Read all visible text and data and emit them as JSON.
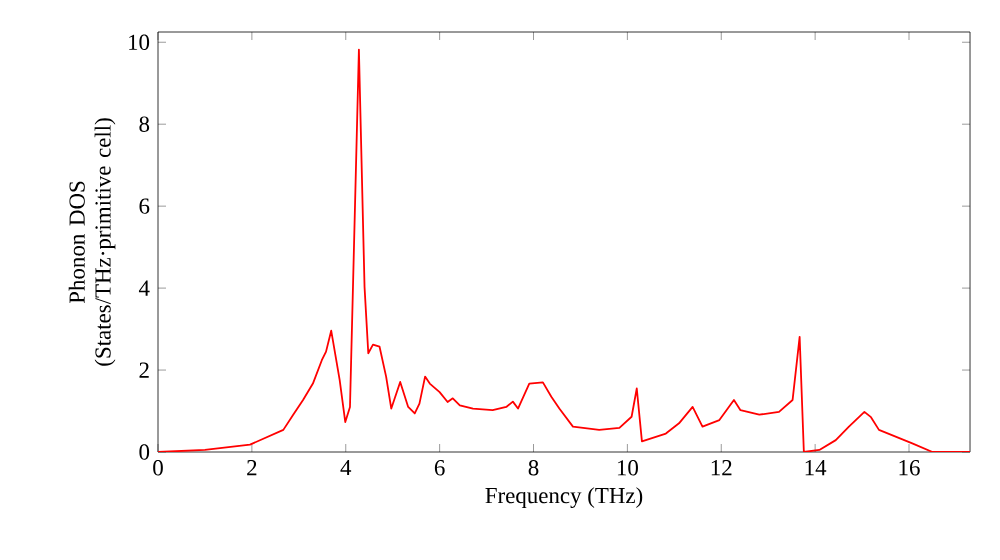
{
  "chart_data": {
    "type": "line",
    "xlabel": "Frequency (THz)",
    "ylabel": "Phonon DOS (States/THz·primitive cell)",
    "xlim": [
      0,
      17.3
    ],
    "ylim": [
      0,
      10.25
    ],
    "xticks": [
      0,
      2,
      4,
      6,
      8,
      10,
      12,
      14,
      16
    ],
    "yticks": [
      0,
      2,
      4,
      6,
      8,
      10
    ],
    "grid": false,
    "marker": "none",
    "line_style": "solid",
    "series": [
      {
        "color": "#ff0000",
        "x": [
          0,
          1.0,
          1.96,
          2.67,
          2.88,
          3.09,
          3.3,
          3.49,
          3.58,
          3.69,
          3.87,
          3.99,
          4.09,
          4.28,
          4.4,
          4.48,
          4.58,
          4.72,
          4.86,
          4.97,
          5.16,
          5.33,
          5.47,
          5.57,
          5.69,
          5.79,
          6.0,
          6.17,
          6.28,
          6.43,
          6.71,
          7.13,
          7.42,
          7.56,
          7.67,
          7.91,
          8.2,
          8.38,
          8.55,
          8.84,
          9.4,
          9.83,
          10.09,
          10.2,
          10.31,
          10.82,
          11.1,
          11.39,
          11.6,
          11.96,
          12.27,
          12.41,
          12.81,
          13.23,
          13.52,
          13.67,
          13.76,
          14.09,
          14.44,
          14.72,
          15.05,
          15.19,
          15.36,
          16.07,
          16.5,
          17.3
        ],
        "values": [
          0,
          0.05,
          0.18,
          0.54,
          0.91,
          1.27,
          1.67,
          2.24,
          2.45,
          2.96,
          1.76,
          0.73,
          1.1,
          9.82,
          4.03,
          2.41,
          2.62,
          2.57,
          1.84,
          1.06,
          1.71,
          1.1,
          0.94,
          1.18,
          1.84,
          1.67,
          1.46,
          1.22,
          1.31,
          1.14,
          1.06,
          1.02,
          1.1,
          1.23,
          1.06,
          1.67,
          1.7,
          1.35,
          1.06,
          0.62,
          0.54,
          0.59,
          0.86,
          1.55,
          0.26,
          0.45,
          0.7,
          1.1,
          0.62,
          0.78,
          1.27,
          1.02,
          0.91,
          0.98,
          1.27,
          2.81,
          0,
          0.05,
          0.29,
          0.62,
          0.98,
          0.85,
          0.54,
          0.21,
          0,
          0
        ]
      }
    ]
  }
}
